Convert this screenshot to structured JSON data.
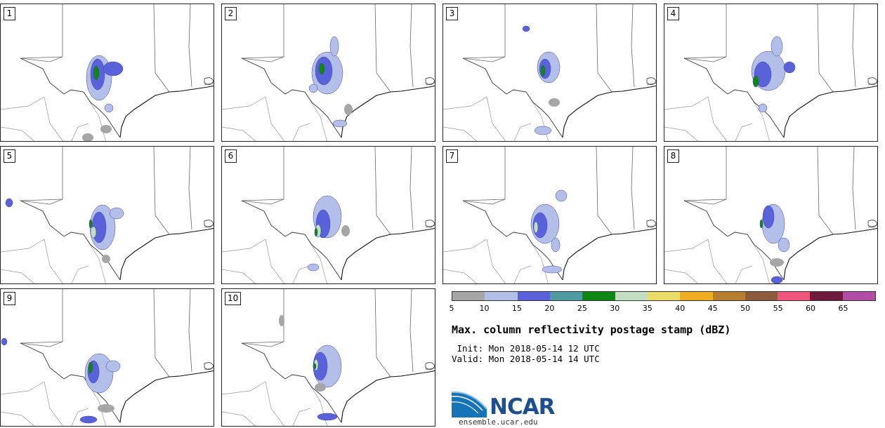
{
  "panels": [
    "1",
    "2",
    "3",
    "4",
    "5",
    "6",
    "7",
    "8",
    "9",
    "10"
  ],
  "colorbar": {
    "colors": [
      "#a6a6a6",
      "#b3bfe8",
      "#5962d9",
      "#4e9ba1",
      "#0e8714",
      "#c2dfc4",
      "#ebdc6a",
      "#efad22",
      "#b77e32",
      "#8c5a3c",
      "#f0567d",
      "#6e1a3c",
      "#b24ca6"
    ],
    "ticks": [
      "5",
      "10",
      "15",
      "20",
      "25",
      "30",
      "35",
      "40",
      "45",
      "50",
      "55",
      "60",
      "65"
    ]
  },
  "title": "Max. column reflectivity postage stamp (dBZ)",
  "init": " Init: Mon 2018-05-14 12 UTC",
  "valid": "Valid: Mon 2018-05-14 14 UTC",
  "logo": {
    "text": "NCAR",
    "url": "ensemble.ucar.edu"
  }
}
